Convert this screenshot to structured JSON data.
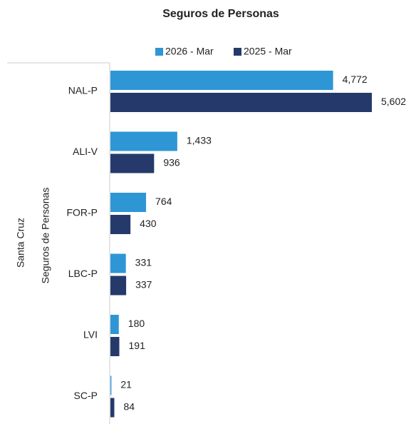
{
  "chart_data": {
    "type": "bar",
    "orientation": "horizontal",
    "title": "Seguros de Personas",
    "axis_labels": [
      "Santa Cruz",
      "Seguros de Personas"
    ],
    "categories": [
      "NAL-P",
      "ALI-V",
      "FOR-P",
      "LBC-P",
      "LVI",
      "SC-P"
    ],
    "series": [
      {
        "name": "2026 - Mar",
        "color": "#2e96d4",
        "values": [
          4772,
          1433,
          764,
          331,
          180,
          21
        ],
        "value_labels": [
          "4,772",
          "1,433",
          "764",
          "331",
          "180",
          "21"
        ]
      },
      {
        "name": "2025 - Mar",
        "color": "#253a6b",
        "values": [
          5602,
          936,
          430,
          337,
          191,
          84
        ],
        "value_labels": [
          "5,602",
          "936",
          "430",
          "337",
          "191",
          "84"
        ]
      }
    ],
    "legend": "top"
  }
}
